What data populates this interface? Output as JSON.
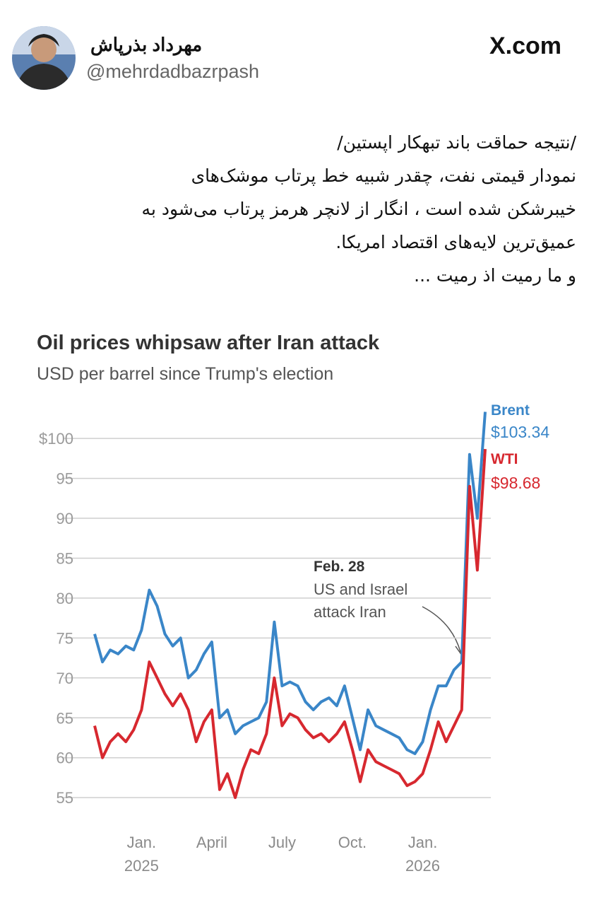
{
  "tweet": {
    "name": "مهرداد بذرپاش",
    "handle": "@mehrdadbazrpash",
    "site": "X.com",
    "lines": [
      "/نتیجه حماقت باند تبهکار اپستین/",
      "نمودار قیمتی نفت، چقدر شبیه خط پرتاب موشک‌های",
      "خیبرشکن شده است ، انگار از لانچر هرمز پرتاب می‌شود به",
      "عمیق‌ترین لایه‌های اقتصاد امریکا.",
      "و ما رمیت اذ رمیت ..."
    ]
  },
  "chart_data": {
    "type": "line",
    "title": "Oil prices whipsaw after Iran attack",
    "subtitle": "USD per barrel since Trump's election",
    "x": [
      "2024-11",
      "2024-11",
      "2024-11",
      "2024-12",
      "2024-12",
      "2024-12",
      "2025-01",
      "2025-01",
      "2025-01",
      "2025-02",
      "2025-02",
      "2025-02",
      "2025-03",
      "2025-03",
      "2025-03",
      "2025-04",
      "2025-04",
      "2025-04",
      "2025-05",
      "2025-05",
      "2025-05",
      "2025-06",
      "2025-06",
      "2025-06",
      "2025-07",
      "2025-07",
      "2025-07",
      "2025-08",
      "2025-08",
      "2025-08",
      "2025-09",
      "2025-09",
      "2025-09",
      "2025-10",
      "2025-10",
      "2025-10",
      "2025-11",
      "2025-11",
      "2025-11",
      "2025-12",
      "2025-12",
      "2025-12",
      "2026-01",
      "2026-01",
      "2026-01",
      "2026-02",
      "2026-02",
      "2026-02",
      "2026-03",
      "2026-03",
      "2026-03"
    ],
    "series": [
      {
        "name": "Brent",
        "color": "#3a86c8",
        "values": [
          75.5,
          72,
          73.5,
          73,
          74,
          73.5,
          76,
          81,
          79,
          75.5,
          74,
          75,
          70,
          71,
          73,
          74.5,
          65,
          66,
          63,
          64,
          64.5,
          65,
          67,
          77,
          69,
          69.5,
          69,
          67,
          66,
          67,
          67.5,
          66.5,
          69,
          65,
          61,
          66,
          64,
          63.5,
          63,
          62.5,
          61,
          60.5,
          62,
          66,
          69,
          69,
          71,
          72,
          98,
          90,
          103.34
        ],
        "value_labels": [
          null,
          null,
          null,
          null,
          null,
          null,
          null,
          null,
          null,
          null,
          null,
          null,
          null,
          null,
          null,
          null,
          null,
          null,
          null,
          null,
          null,
          null,
          null,
          null,
          null,
          null,
          null,
          null,
          null,
          null,
          null,
          null,
          null,
          null,
          null,
          null,
          null,
          null,
          null,
          null,
          null,
          null,
          null,
          null,
          null,
          null,
          null,
          null,
          null,
          null,
          "$103.34"
        ]
      },
      {
        "name": "WTI",
        "color": "#d7282f",
        "values": [
          64,
          60,
          62,
          63,
          62,
          63.5,
          66,
          72,
          70,
          68,
          66.5,
          68,
          66,
          62,
          64.5,
          66,
          56,
          58,
          55,
          58.5,
          61,
          60.5,
          63,
          70,
          64,
          65.5,
          65,
          63.5,
          62.5,
          63,
          62,
          63,
          64.5,
          61,
          57,
          61,
          59.5,
          59,
          58.5,
          58,
          56.5,
          57,
          58,
          61,
          64.5,
          62,
          64,
          66,
          94,
          83.5,
          98.68
        ],
        "value_labels": [
          null,
          null,
          null,
          null,
          null,
          null,
          null,
          null,
          null,
          null,
          null,
          null,
          null,
          null,
          null,
          null,
          null,
          null,
          null,
          null,
          null,
          null,
          null,
          null,
          null,
          null,
          null,
          null,
          null,
          null,
          null,
          null,
          null,
          null,
          null,
          null,
          null,
          null,
          null,
          null,
          null,
          null,
          null,
          null,
          null,
          null,
          null,
          null,
          null,
          null,
          "$98.68"
        ]
      }
    ],
    "ylim": [
      52,
      104
    ],
    "yticks": [
      55,
      60,
      65,
      70,
      75,
      80,
      85,
      90,
      95,
      {
        "value": 100,
        "label": "$100"
      }
    ],
    "xticks": [
      {
        "value": "2025-01",
        "label": [
          "Jan.",
          "2025"
        ]
      },
      {
        "value": "2025-04",
        "label": [
          "April"
        ]
      },
      {
        "value": "2025-07",
        "label": [
          "July"
        ]
      },
      {
        "value": "2025-10",
        "label": [
          "Oct."
        ]
      },
      {
        "value": "2026-01",
        "label": [
          "Jan.",
          "2026"
        ]
      }
    ],
    "grid": true,
    "annotation": {
      "date": "Feb. 28",
      "lines": [
        "US and Israel",
        "attack Iran"
      ]
    }
  }
}
